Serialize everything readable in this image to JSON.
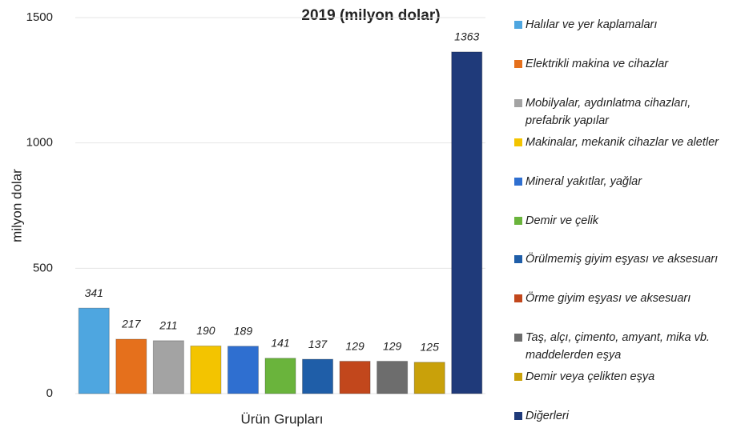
{
  "chart_data": {
    "type": "bar",
    "title": "2019 (milyon dolar)",
    "x_label": "Ürün Grupları",
    "y_label": "milyon dolar",
    "categories": [
      "Halılar ve yer kaplamaları",
      "Elektrikli makina ve cihazlar",
      "Mobilyalar, aydınlatma cihazları, prefabrik yapılar",
      "Makinalar, mekanik cihazlar ve aletler",
      "Mineral yakıtlar, yağlar",
      "Demir ve çelik",
      "Örülmemiş giyim eşyası ve aksesuarı",
      "Örme giyim eşyası ve aksesuarı",
      "Taş, alçı, çimento, amyant, mika vb. maddelerden eşya",
      "Demir veya çelikten eşya",
      "Diğerleri"
    ],
    "values": [
      341,
      217,
      211,
      190,
      189,
      141,
      137,
      129,
      129,
      125,
      1363
    ],
    "colors": [
      "#4ea6e0",
      "#e5701c",
      "#a3a3a3",
      "#f3c400",
      "#2f6fd0",
      "#6ab43c",
      "#1f5ea8",
      "#c2471c",
      "#6d6d6d",
      "#c9a10a",
      "#1f3a7a"
    ],
    "ylim": [
      0,
      1500
    ],
    "yticks": [
      0,
      500,
      1000,
      1500
    ],
    "grid": true,
    "legend": "right"
  }
}
